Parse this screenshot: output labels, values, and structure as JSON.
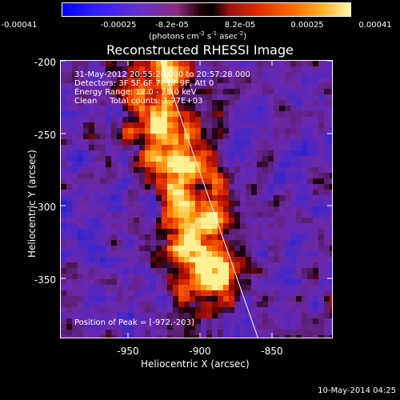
{
  "colorbar": {
    "ticks": [
      "-0.00041",
      "-0.00025",
      "-8.2e-05",
      "8.2e-05",
      "0.00025",
      "0.00041"
    ],
    "units_prefix": "(photons cm",
    "units_exp1": "-2",
    "units_mid": " s",
    "units_exp2": "-1",
    "units_mid2": " asec",
    "units_exp3": "-2",
    "units_suffix": ")"
  },
  "title": "Reconstructed RHESSI Image",
  "info": {
    "line1": "31-May-2012 20:55:20.000 to 20:57:28.000",
    "line2": "Detectors: 3F 5F 6F 7F 8F 9F, Att 0",
    "line3": "Energy Range: 12.0 - 25.0 keV",
    "line4": "Clean     Total counts: 1.77E+03",
    "peak": "Position of Peak = [-972,-203]"
  },
  "axes": {
    "xlabel": "Heliocentric X (arcsec)",
    "ylabel": "Heliocentric Y (arcsec)",
    "xticks": [
      "-950",
      "-900",
      "-850"
    ],
    "yticks": [
      "-200",
      "-250",
      "-300",
      "-350"
    ]
  },
  "date_stamp": "10-May-2014 04:25",
  "colors": {
    "colormap": [
      "#0000ff",
      "#3322ff",
      "#6a2fc8",
      "#8a2a7a",
      "#2a0a10",
      "#000000",
      "#a01010",
      "#e02c00",
      "#ff6a00",
      "#ffb020",
      "#ffe060",
      "#ffffff"
    ]
  }
}
